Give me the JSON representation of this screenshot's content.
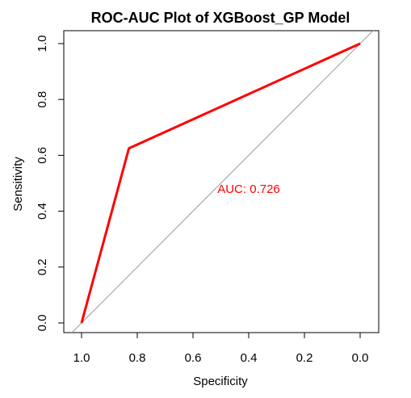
{
  "chart_data": {
    "type": "line",
    "title": "ROC-AUC Plot of XGBoost_GP Model",
    "xlabel": "Specificity",
    "ylabel": "Sensitivity",
    "xlim": [
      1.0,
      0.0
    ],
    "xaxis_reversed": true,
    "ylim": [
      0.0,
      1.0
    ],
    "x_ticks": [
      1.0,
      0.8,
      0.6,
      0.4,
      0.2,
      0.0
    ],
    "x_tick_labels": [
      "1.0",
      "0.8",
      "0.6",
      "0.4",
      "0.2",
      "0.0"
    ],
    "y_ticks": [
      0.0,
      0.2,
      0.4,
      0.6,
      0.8,
      1.0
    ],
    "y_tick_labels": [
      "0.0",
      "0.2",
      "0.4",
      "0.6",
      "0.8",
      "1.0"
    ],
    "grid": false,
    "series": [
      {
        "color": "#ff0000",
        "x": [
          1.0,
          0.83,
          0.0
        ],
        "y": [
          0.0,
          0.625,
          1.0
        ]
      }
    ],
    "reference_line": {
      "x": [
        1.0,
        0.0
      ],
      "y": [
        0.0,
        1.0
      ],
      "color": "#999999"
    },
    "annotations": [
      {
        "text": "AUC: 0.726",
        "x": 0.4,
        "y": 0.48,
        "color": "#ff0000"
      }
    ]
  }
}
